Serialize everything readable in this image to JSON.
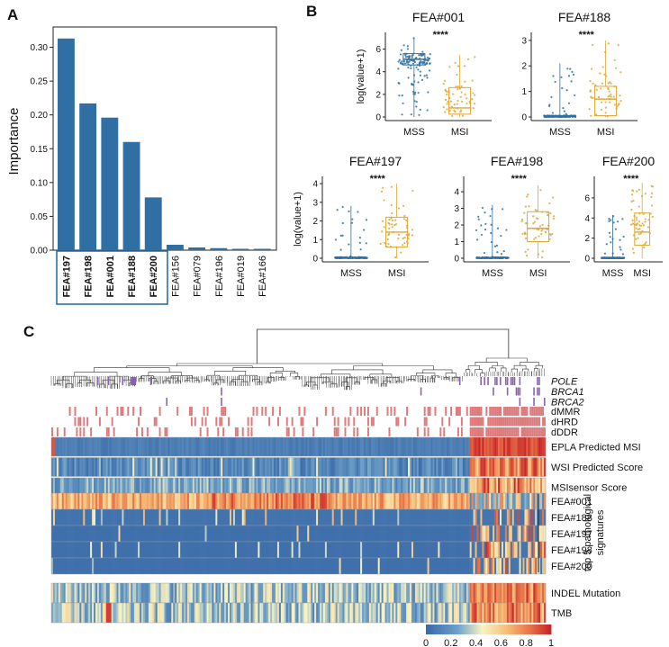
{
  "panels": {
    "a": "A",
    "b": "B",
    "c": "C"
  },
  "chart_data": [
    {
      "id": "importance",
      "type": "bar",
      "ylabel": "Importance",
      "ylim": [
        0,
        0.33
      ],
      "yticks": [
        "0.00",
        "0.05",
        "0.10",
        "0.15",
        "0.20",
        "0.25",
        "0.30"
      ],
      "categories": [
        "FEA#197",
        "FEA#198",
        "FEA#001",
        "FEA#188",
        "FEA#200",
        "FEA#156",
        "FEA#079",
        "FEA#196",
        "FEA#019",
        "FEA#166"
      ],
      "values": [
        0.313,
        0.217,
        0.196,
        0.16,
        0.078,
        0.008,
        0.004,
        0.003,
        0.002,
        0.002
      ],
      "highlighted_top": 5,
      "color": "#2f6fa3"
    },
    {
      "id": "boxplots",
      "type": "box",
      "ylabel": "log(value+1)",
      "groups": [
        "MSS",
        "MSI"
      ],
      "colors": {
        "MSS": "#2f6fa3",
        "MSI": "#e0a630"
      },
      "significance": "****",
      "plots": [
        {
          "title": "FEA#001",
          "ymax": 7,
          "yticks": [
            "0",
            "2",
            "4",
            "6"
          ],
          "MSS": {
            "min": 0,
            "q1": 4.6,
            "median": 5.1,
            "q3": 5.6,
            "max": 7.0
          },
          "MSI": {
            "min": 0,
            "q1": 0.25,
            "median": 0.8,
            "q3": 2.6,
            "max": 5.5
          }
        },
        {
          "title": "FEA#188",
          "ymax": 3.1,
          "yticks": [
            "0",
            "1",
            "2",
            "3"
          ],
          "MSS": {
            "min": 0,
            "q1": 0,
            "median": 0,
            "q3": 0.05,
            "max": 2.1
          },
          "MSI": {
            "min": 0,
            "q1": 0.05,
            "median": 0.7,
            "q3": 1.2,
            "max": 3.0
          }
        },
        {
          "title": "FEA#197",
          "ymax": 4.1,
          "yticks": [
            "0",
            "1",
            "2",
            "3",
            "4"
          ],
          "MSS": {
            "min": 0,
            "q1": 0,
            "median": 0,
            "q3": 0.05,
            "max": 2.8
          },
          "MSI": {
            "min": 0,
            "q1": 0.6,
            "median": 1.4,
            "q3": 2.2,
            "max": 4.0
          }
        },
        {
          "title": "FEA#198",
          "ymax": 4.6,
          "yticks": [
            "0",
            "1",
            "2",
            "3",
            "4"
          ],
          "MSS": {
            "min": 0,
            "q1": 0,
            "median": 0,
            "q3": 0.05,
            "max": 3.2
          },
          "MSI": {
            "min": 0,
            "q1": 1.0,
            "median": 1.8,
            "q3": 2.8,
            "max": 4.4
          }
        },
        {
          "title": "FEA#200",
          "ymax": 7.6,
          "yticks": [
            "0",
            "2",
            "4",
            "6"
          ],
          "MSS": {
            "min": 0,
            "q1": 0,
            "median": 0,
            "q3": 0.1,
            "max": 4.3
          },
          "MSI": {
            "min": 0,
            "q1": 1.3,
            "median": 2.6,
            "q3": 4.5,
            "max": 7.5
          }
        }
      ]
    },
    {
      "id": "heatmap",
      "type": "heatmap",
      "mutation_rows": [
        "POLE",
        "BRCA1",
        "BRCA2"
      ],
      "deficiency_rows": [
        "dMMR",
        "dHRD",
        "dDDR"
      ],
      "score_rows": [
        "EPLA Predicted MSI",
        "WSI Predicted Score",
        "MSIsensor Score"
      ],
      "signature_rows": [
        "FEA#001",
        "FEA#188",
        "FEA#197",
        "FEA#198",
        "FEA#200"
      ],
      "signature_group_label": "top 5 pathological signatures",
      "other_rows": [
        "INDEL Mutation",
        "TMB"
      ],
      "colorbar_ticks": [
        "0",
        "0.2",
        "0.4",
        "0.6",
        "0.8",
        "1"
      ],
      "colors": {
        "low": "#3a6aa8",
        "mid": "#f7f4c6",
        "high": "#d7312c",
        "mutation": "#8a5fb3",
        "deficiency": "#de7a7c"
      }
    }
  ]
}
